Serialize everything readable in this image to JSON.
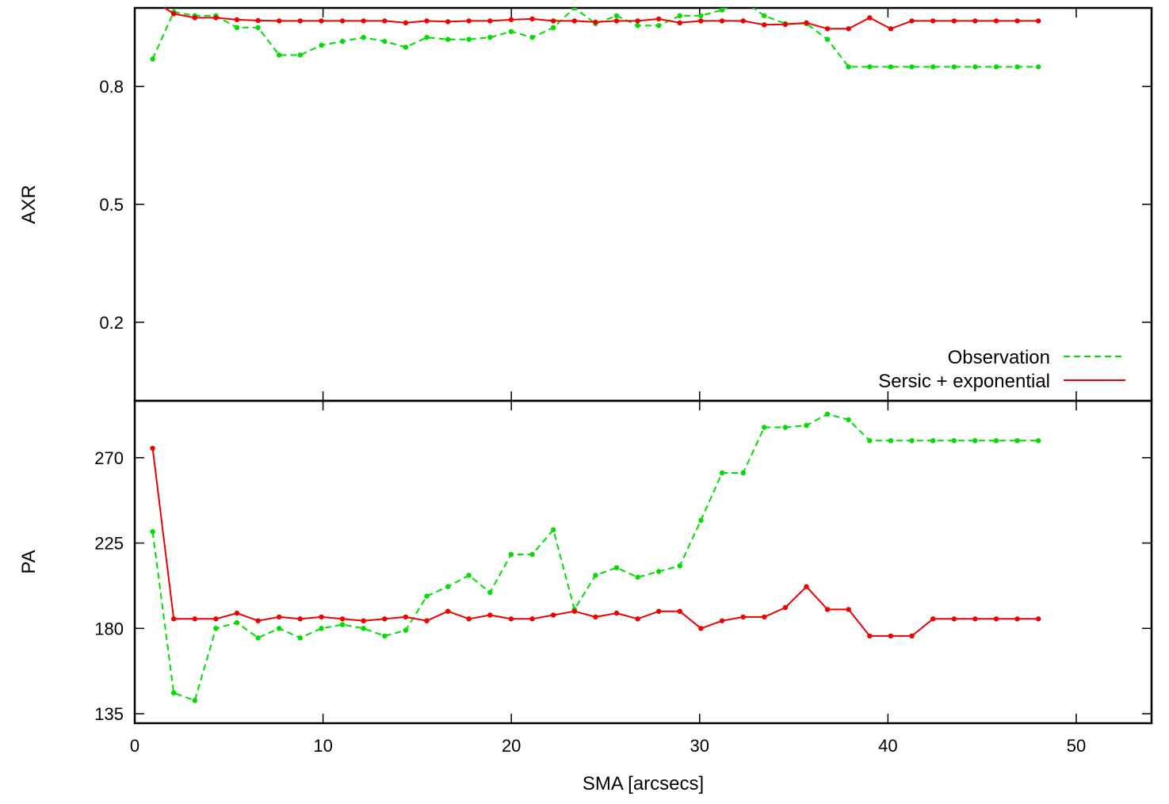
{
  "chart_data": [
    {
      "type": "line",
      "panel": "top",
      "ylabel": "AXR",
      "xlim": [
        0,
        54
      ],
      "ylim": [
        0,
        1
      ],
      "yticks": [
        0.2,
        0.5,
        0.8
      ],
      "grid": false,
      "legend": "bottom-right",
      "series": [
        {
          "name": "Observation",
          "color": "#00dd00",
          "style": "dashed",
          "x": [
            0.95,
            2.07,
            3.19,
            4.31,
            5.43,
            6.55,
            7.67,
            8.79,
            9.91,
            11.03,
            12.15,
            13.27,
            14.39,
            15.51,
            16.63,
            17.75,
            18.87,
            19.99,
            21.11,
            22.23,
            23.35,
            24.47,
            25.59,
            26.71,
            27.83,
            28.95,
            30.07,
            31.19,
            32.31,
            33.43,
            34.55,
            35.67,
            36.79,
            37.91,
            39.03,
            40.15,
            41.27,
            42.39,
            43.51,
            44.63,
            45.75,
            46.87,
            47.99
          ],
          "y": [
            0.87,
            0.99,
            0.98,
            0.98,
            0.95,
            0.95,
            0.88,
            0.88,
            0.905,
            0.915,
            0.925,
            0.915,
            0.9,
            0.925,
            0.92,
            0.92,
            0.925,
            0.94,
            0.925,
            0.95,
            1.0,
            0.96,
            0.98,
            0.955,
            0.955,
            0.98,
            0.98,
            0.995,
            1.02,
            0.98,
            0.96,
            0.96,
            0.92,
            0.85,
            0.85,
            0.85,
            0.85,
            0.85,
            0.85,
            0.85,
            0.85,
            0.85,
            0.85
          ]
        },
        {
          "name": "Sersic + exponential",
          "color": "#ee0000",
          "style": "solid",
          "x": [
            0.95,
            2.07,
            3.19,
            4.31,
            5.43,
            6.55,
            7.67,
            8.79,
            9.91,
            11.03,
            12.15,
            13.27,
            14.39,
            15.51,
            16.63,
            17.75,
            18.87,
            19.99,
            21.11,
            22.23,
            23.35,
            24.47,
            25.59,
            26.71,
            27.83,
            28.95,
            30.07,
            31.19,
            32.31,
            33.43,
            34.55,
            35.67,
            36.79,
            37.91,
            39.03,
            40.15,
            41.27,
            42.39,
            43.51,
            44.63,
            45.75,
            46.87,
            47.99
          ],
          "y": [
            1.02,
            0.985,
            0.975,
            0.975,
            0.97,
            0.968,
            0.967,
            0.967,
            0.967,
            0.967,
            0.967,
            0.967,
            0.962,
            0.967,
            0.965,
            0.967,
            0.967,
            0.97,
            0.972,
            0.967,
            0.967,
            0.964,
            0.967,
            0.967,
            0.972,
            0.962,
            0.967,
            0.967,
            0.967,
            0.957,
            0.958,
            0.962,
            0.947,
            0.947,
            0.975,
            0.947,
            0.967,
            0.967,
            0.967,
            0.967,
            0.967,
            0.967,
            0.967
          ]
        }
      ]
    },
    {
      "type": "line",
      "panel": "bottom",
      "ylabel": "PA",
      "xlabel": "SMA [arcsecs]",
      "xlim": [
        0,
        54
      ],
      "xticks": [
        0,
        10,
        20,
        30,
        40,
        50
      ],
      "ylim": [
        130,
        300
      ],
      "yticks": [
        135,
        180,
        225,
        270
      ],
      "grid": false,
      "series": [
        {
          "name": "Observation",
          "color": "#00dd00",
          "style": "dashed",
          "x": [
            0.95,
            2.07,
            3.19,
            4.31,
            5.43,
            6.55,
            7.67,
            8.79,
            9.91,
            11.03,
            12.15,
            13.27,
            14.39,
            15.51,
            16.63,
            17.75,
            18.87,
            19.99,
            21.11,
            22.23,
            23.35,
            24.47,
            25.59,
            26.71,
            27.83,
            28.95,
            30.07,
            31.19,
            32.31,
            33.43,
            34.55,
            35.67,
            36.79,
            37.91,
            39.03,
            40.15,
            41.27,
            42.39,
            43.51,
            44.63,
            45.75,
            46.87,
            47.99
          ],
          "y": [
            231,
            146,
            142,
            180,
            183,
            175,
            180,
            175,
            180,
            182,
            180,
            176,
            179,
            197,
            202,
            208,
            199,
            219,
            219,
            232,
            190,
            208,
            212,
            207,
            210,
            213,
            237,
            262,
            262,
            286,
            286,
            287,
            293,
            290,
            279,
            279,
            279,
            279,
            279,
            279,
            279,
            279,
            279
          ]
        },
        {
          "name": "Sersic + exponential",
          "color": "#ee0000",
          "style": "solid",
          "x": [
            0.95,
            2.07,
            3.19,
            4.31,
            5.43,
            6.55,
            7.67,
            8.79,
            9.91,
            11.03,
            12.15,
            13.27,
            14.39,
            15.51,
            16.63,
            17.75,
            18.87,
            19.99,
            21.11,
            22.23,
            23.35,
            24.47,
            25.59,
            26.71,
            27.83,
            28.95,
            30.07,
            31.19,
            32.31,
            33.43,
            34.55,
            35.67,
            36.79,
            37.91,
            39.03,
            40.15,
            41.27,
            42.39,
            43.51,
            44.63,
            45.75,
            46.87,
            47.99
          ],
          "y": [
            275,
            185,
            185,
            185,
            188,
            184,
            186,
            185,
            186,
            185,
            184,
            185,
            186,
            184,
            189,
            185,
            187,
            185,
            185,
            187,
            189,
            186,
            188,
            185,
            189,
            189,
            180,
            184,
            186,
            186,
            191,
            202,
            190,
            190,
            176,
            176,
            176,
            185,
            185,
            185,
            185,
            185,
            185
          ]
        }
      ]
    }
  ]
}
